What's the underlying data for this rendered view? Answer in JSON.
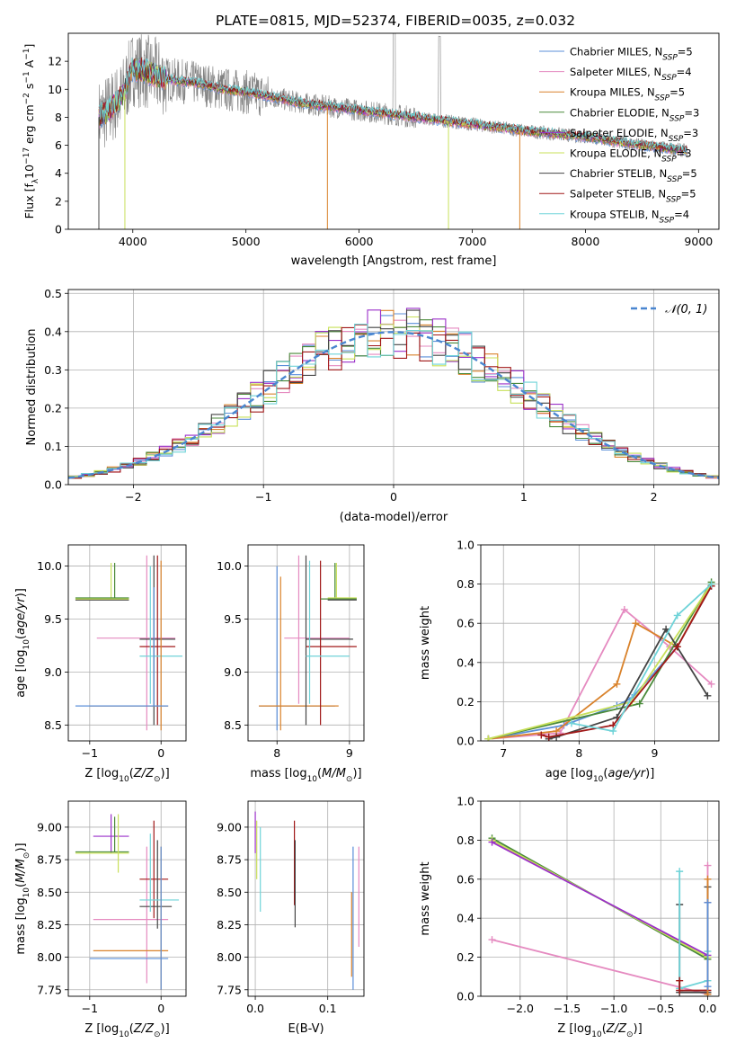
{
  "figure": {
    "title": "PLATE=0815, MJD=52374, FIBERID=0035, z=0.032"
  },
  "colors": {
    "Chabrier MILES": "#5b8fd9",
    "Salpeter MILES": "#e58ac0",
    "Kroupa MILES": "#d9822b",
    "Chabrier ELODIE": "#4a8a3a",
    "Salpeter ELODIE": "#9b30c9",
    "Kroupa ELODIE": "#c8e05a",
    "Chabrier STELIB": "#444444",
    "Salpeter STELIB": "#a01818",
    "Kroupa STELIB": "#6fd3d8",
    "data": "#808080"
  },
  "chart_data": [
    {
      "id": "spectrum",
      "type": "line",
      "xlabel": "wavelength [Angstrom, rest frame]",
      "ylabel": "Flux [f_λ10^-17 erg cm^-2 s^-1 A^-1]",
      "xlim": [
        3430,
        9180
      ],
      "ylim": [
        0,
        14
      ],
      "xticks": [
        4000,
        5000,
        6000,
        7000,
        8000,
        9000
      ],
      "yticks": [
        0,
        2,
        4,
        6,
        8,
        10,
        12
      ],
      "legend": [
        {
          "name": "Chabrier MILES",
          "nssp": "5"
        },
        {
          "name": "Salpeter MILES",
          "nssp": "4"
        },
        {
          "name": "Kroupa MILES",
          "nssp": "5"
        },
        {
          "name": "Chabrier ELODIE",
          "nssp": "3"
        },
        {
          "name": "Salpeter ELODIE",
          "nssp": "3"
        },
        {
          "name": "Kroupa ELODIE",
          "nssp": "3"
        },
        {
          "name": "Chabrier STELIB",
          "nssp": "5"
        },
        {
          "name": "Salpeter STELIB",
          "nssp": "5"
        },
        {
          "name": "Kroupa STELIB",
          "nssp": "4"
        }
      ],
      "legend_prefix": "N",
      "legend_sub": "SSP",
      "legend_placement": "upper-right",
      "continuum": [
        [
          3700,
          8.0
        ],
        [
          3800,
          8.6
        ],
        [
          3900,
          9.4
        ],
        [
          4000,
          11.5
        ],
        [
          4100,
          11.3
        ],
        [
          4200,
          11.0
        ],
        [
          4300,
          10.7
        ],
        [
          4400,
          10.6
        ],
        [
          4600,
          10.4
        ],
        [
          4800,
          10.0
        ],
        [
          5000,
          9.8
        ],
        [
          5200,
          9.5
        ],
        [
          5500,
          9.0
        ],
        [
          6000,
          8.5
        ],
        [
          6500,
          8.0
        ],
        [
          7000,
          7.5
        ],
        [
          7500,
          7.0
        ],
        [
          8000,
          6.6
        ],
        [
          8500,
          6.0
        ],
        [
          8900,
          5.6
        ]
      ]
    },
    {
      "id": "residuals",
      "type": "bar",
      "xlabel": "(data-model)/error",
      "ylabel": "Normed distribution",
      "xlim": [
        -2.5,
        2.5
      ],
      "ylim": [
        0,
        0.51
      ],
      "xticks": [
        -2,
        -1,
        0,
        1,
        2
      ],
      "yticks": [
        0.0,
        0.1,
        0.2,
        0.3,
        0.4,
        0.5
      ],
      "legend": "𝒩(0, 1)",
      "legend_placement": "upper-right",
      "bin_width": 0.1,
      "gaussian": {
        "mu": 0,
        "sigma": 1
      }
    },
    {
      "id": "age_vs_Z",
      "type": "scatter",
      "xlabel": "Z [log10(Z/Z⊙)]",
      "ylabel": "age [log10(age/yr)]",
      "xlim": [
        -1.3,
        0.35
      ],
      "ylim": [
        8.35,
        10.2
      ],
      "xticks": [
        -1,
        0
      ],
      "yticks": [
        8.5,
        9.0,
        9.5,
        10.0
      ]
    },
    {
      "id": "age_vs_mass",
      "type": "scatter",
      "xlabel": "mass [log10(M/M⊙)]",
      "xlim": [
        7.6,
        9.2
      ],
      "ylim": [
        8.35,
        10.2
      ],
      "xticks": [
        8,
        9
      ],
      "yticks": [
        8.5,
        9.0,
        9.5,
        10.0
      ]
    },
    {
      "id": "weight_vs_age",
      "type": "line",
      "xlabel": "age [log10(age/yr)]",
      "ylabel": "mass weight",
      "xlim": [
        6.7,
        9.85
      ],
      "ylim": [
        0,
        1.0
      ],
      "xticks": [
        7,
        8,
        9
      ],
      "yticks": [
        0.0,
        0.2,
        0.4,
        0.6,
        0.8,
        1.0
      ],
      "series": [
        {
          "name": "Chabrier MILES",
          "x": [
            6.8,
            7.8,
            8.5,
            8.7,
            9.3,
            9.75
          ],
          "y": [
            0.01,
            0.08,
            0.18,
            0.22,
            0.48,
            0.79
          ]
        },
        {
          "name": "Salpeter MILES",
          "x": [
            6.8,
            7.75,
            8.6,
            9.2,
            9.75
          ],
          "y": [
            0.01,
            0.04,
            0.67,
            0.48,
            0.29
          ]
        },
        {
          "name": "Kroupa MILES",
          "x": [
            6.8,
            7.7,
            8.5,
            8.75,
            9.3,
            9.75
          ],
          "y": [
            0.01,
            0.05,
            0.29,
            0.6,
            0.48,
            0.8
          ]
        },
        {
          "name": "Chabrier ELODIE",
          "x": [
            6.8,
            8.8,
            9.75
          ],
          "y": [
            0.01,
            0.19,
            0.81
          ]
        },
        {
          "name": "Kroupa ELODIE",
          "x": [
            6.8,
            8.7,
            9.75
          ],
          "y": [
            0.01,
            0.2,
            0.8
          ]
        },
        {
          "name": "Chabrier STELIB",
          "x": [
            7.6,
            7.7,
            8.5,
            9.15,
            9.7
          ],
          "y": [
            0.01,
            0.02,
            0.12,
            0.57,
            0.23
          ]
        },
        {
          "name": "Salpeter STELIB",
          "x": [
            7.5,
            7.6,
            8.45,
            9.3,
            9.75
          ],
          "y": [
            0.03,
            0.02,
            0.08,
            0.48,
            0.79
          ]
        },
        {
          "name": "Kroupa STELIB",
          "x": [
            7.9,
            8.45,
            9.3,
            9.75
          ],
          "y": [
            0.09,
            0.05,
            0.64,
            0.8
          ]
        }
      ]
    },
    {
      "id": "mass_vs_Z",
      "type": "scatter",
      "xlabel": "Z [log10(Z/Z⊙)]",
      "ylabel": "mass [log10(M/M⊙)]",
      "xlim": [
        -1.3,
        0.35
      ],
      "ylim": [
        7.7,
        9.2
      ],
      "xticks": [
        -1,
        0
      ],
      "yticks": [
        7.75,
        8.0,
        8.25,
        8.5,
        8.75,
        9.0
      ]
    },
    {
      "id": "mass_vs_ebv",
      "type": "scatter",
      "xlabel": "E(B-V)",
      "xlim": [
        -0.01,
        0.15
      ],
      "ylim": [
        7.7,
        9.2
      ],
      "xticks": [
        0.0,
        0.1
      ],
      "yticks": [
        7.75,
        8.0,
        8.25,
        8.5,
        8.75,
        9.0
      ]
    },
    {
      "id": "weight_vs_Z",
      "type": "line",
      "xlabel": "Z [log10(Z/Z⊙)]",
      "ylabel": "mass weight",
      "xlim": [
        -2.42,
        0.12
      ],
      "ylim": [
        0,
        1.0
      ],
      "xticks": [
        -2.0,
        -1.5,
        -1.0,
        -0.5,
        0.0
      ],
      "yticks": [
        0.0,
        0.2,
        0.4,
        0.6,
        0.8,
        1.0
      ],
      "series": [
        {
          "name": "Chabrier ELODIE",
          "x": [
            -2.3,
            0.0
          ],
          "y": [
            0.81,
            0.19
          ]
        },
        {
          "name": "Kroupa ELODIE",
          "x": [
            -2.3,
            0.0
          ],
          "y": [
            0.8,
            0.2
          ]
        },
        {
          "name": "Salpeter ELODIE",
          "x": [
            -2.3,
            0.0
          ],
          "y": [
            0.79,
            0.21
          ]
        },
        {
          "name": "Salpeter MILES",
          "x": [
            -2.3,
            0.0,
            0.0
          ],
          "y": [
            0.29,
            0.01,
            0.67
          ]
        },
        {
          "name": "Chabrier STELIB",
          "x": [
            -0.3,
            -0.3,
            0.0,
            0.0
          ],
          "y": [
            0.47,
            0.02,
            0.02,
            0.56
          ]
        },
        {
          "name": "Kroupa STELIB",
          "x": [
            -0.3,
            -0.3,
            0.0,
            0.0
          ],
          "y": [
            0.64,
            0.04,
            0.08,
            0.23
          ]
        },
        {
          "name": "Salpeter STELIB",
          "x": [
            -0.3,
            -0.3,
            0.0,
            0.0
          ],
          "y": [
            0.08,
            0.03,
            0.03,
            0.48
          ]
        },
        {
          "name": "Kroupa MILES",
          "x": [
            0.0,
            0.0
          ],
          "y": [
            0.01,
            0.6
          ]
        },
        {
          "name": "Chabrier MILES",
          "x": [
            0.0,
            0.0
          ],
          "y": [
            0.05,
            0.48
          ]
        }
      ]
    }
  ]
}
